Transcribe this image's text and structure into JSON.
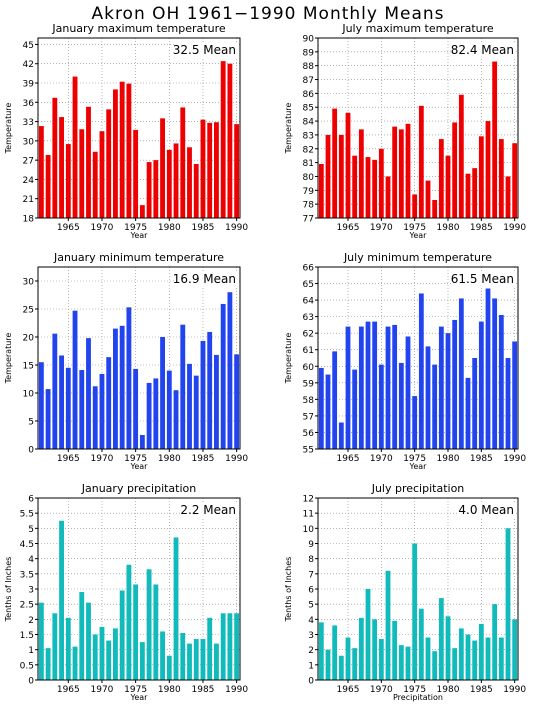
{
  "title": "Akron OH   1961−1990 Monthly Means",
  "chart_data": [
    {
      "type": "bar",
      "title": "January maximum temperature",
      "annotation": "32.5 Mean",
      "ylabel": "Temperature",
      "xlabel": "Year",
      "color": "#ee0000",
      "ylim": [
        18,
        46
      ],
      "yticks": [
        18,
        21,
        24,
        27,
        30,
        33,
        36,
        39,
        42,
        45
      ],
      "xticks": [
        1965,
        1970,
        1975,
        1980,
        1985,
        1990
      ],
      "x": [
        1961,
        1962,
        1963,
        1964,
        1965,
        1966,
        1967,
        1968,
        1969,
        1970,
        1971,
        1972,
        1973,
        1974,
        1975,
        1976,
        1977,
        1978,
        1979,
        1980,
        1981,
        1982,
        1983,
        1984,
        1985,
        1986,
        1987,
        1988,
        1989,
        1990
      ],
      "values": [
        32.3,
        27.8,
        36.7,
        33.7,
        29.5,
        40.0,
        31.8,
        35.3,
        28.3,
        31.5,
        34.9,
        38.0,
        39.2,
        38.9,
        31.7,
        20.0,
        26.7,
        27.0,
        33.5,
        28.6,
        29.6,
        35.2,
        29.0,
        26.4,
        33.3,
        32.8,
        32.9,
        42.4,
        42.0,
        32.6
      ]
    },
    {
      "type": "bar",
      "title": "July maximum temperature",
      "annotation": "82.4 Mean",
      "ylabel": "Temperature",
      "xlabel": "Year",
      "color": "#ee0000",
      "ylim": [
        77,
        90
      ],
      "yticks": [
        77,
        78,
        79,
        80,
        81,
        82,
        83,
        84,
        85,
        86,
        87,
        88,
        89,
        90
      ],
      "xticks": [
        1965,
        1970,
        1975,
        1980,
        1985,
        1990
      ],
      "x": [
        1961,
        1962,
        1963,
        1964,
        1965,
        1966,
        1967,
        1968,
        1969,
        1970,
        1971,
        1972,
        1973,
        1974,
        1975,
        1976,
        1977,
        1978,
        1979,
        1980,
        1981,
        1982,
        1983,
        1984,
        1985,
        1986,
        1987,
        1988,
        1989,
        1990
      ],
      "values": [
        80.9,
        83.0,
        84.9,
        83.0,
        84.6,
        81.5,
        83.4,
        81.4,
        81.2,
        82.0,
        80.0,
        83.6,
        83.4,
        83.8,
        78.7,
        85.1,
        79.7,
        78.3,
        82.7,
        81.5,
        83.9,
        85.9,
        80.2,
        80.6,
        82.9,
        84.0,
        88.3,
        82.7,
        80.0,
        82.4
      ]
    },
    {
      "type": "bar",
      "title": "January minimum temperature",
      "annotation": "16.9 Mean",
      "ylabel": "Temperature",
      "xlabel": "Year",
      "color": "#2244ee",
      "ylim": [
        0,
        32.5
      ],
      "yticks": [
        0,
        5,
        10,
        15,
        20,
        25,
        30
      ],
      "xticks": [
        1965,
        1970,
        1975,
        1980,
        1985,
        1990
      ],
      "x": [
        1961,
        1962,
        1963,
        1964,
        1965,
        1966,
        1967,
        1968,
        1969,
        1970,
        1971,
        1972,
        1973,
        1974,
        1975,
        1976,
        1977,
        1978,
        1979,
        1980,
        1981,
        1982,
        1983,
        1984,
        1985,
        1986,
        1987,
        1988,
        1989,
        1990
      ],
      "values": [
        15.5,
        10.7,
        20.6,
        16.7,
        14.5,
        24.7,
        14.1,
        19.8,
        11.2,
        13.4,
        16.4,
        21.5,
        22.0,
        25.3,
        14.3,
        2.5,
        11.8,
        12.6,
        20.0,
        14.0,
        10.5,
        22.2,
        15.2,
        13.1,
        19.3,
        20.9,
        16.8,
        25.9,
        28.0,
        16.9
      ]
    },
    {
      "type": "bar",
      "title": "July minimum temperature",
      "annotation": "61.5 Mean",
      "ylabel": "Temperature",
      "xlabel": "Year",
      "color": "#2244ee",
      "ylim": [
        55,
        66
      ],
      "yticks": [
        55,
        56,
        57,
        58,
        59,
        60,
        61,
        62,
        63,
        64,
        65,
        66
      ],
      "xticks": [
        1965,
        1970,
        1975,
        1980,
        1985,
        1990
      ],
      "x": [
        1961,
        1962,
        1963,
        1964,
        1965,
        1966,
        1967,
        1968,
        1969,
        1970,
        1971,
        1972,
        1973,
        1974,
        1975,
        1976,
        1977,
        1978,
        1979,
        1980,
        1981,
        1982,
        1983,
        1984,
        1985,
        1986,
        1987,
        1988,
        1989,
        1990
      ],
      "values": [
        59.9,
        59.5,
        60.9,
        56.6,
        62.4,
        59.8,
        62.4,
        62.7,
        62.7,
        60.1,
        62.4,
        62.5,
        60.2,
        61.8,
        58.2,
        64.4,
        61.2,
        60.1,
        62.4,
        62.0,
        62.8,
        64.1,
        59.3,
        60.5,
        62.7,
        64.7,
        64.1,
        63.1,
        60.5,
        61.5
      ]
    },
    {
      "type": "bar",
      "title": "January precipitation",
      "annotation": "2.2 Mean",
      "ylabel": "Tenths of Inches",
      "xlabel": "Year",
      "color": "#11bbbb",
      "ylim": [
        0,
        6
      ],
      "yticks": [
        0,
        0.5,
        1,
        1.5,
        2,
        2.5,
        3,
        3.5,
        4,
        4.5,
        5,
        5.5,
        6
      ],
      "ytick_labels": [
        "0",
        "0.5",
        "1",
        "1.5",
        "2",
        "2.5",
        "3",
        "3.5",
        "4",
        "4.5",
        "5",
        "5.5",
        "6"
      ],
      "xticks": [
        1965,
        1970,
        1975,
        1980,
        1985,
        1990
      ],
      "x": [
        1961,
        1962,
        1963,
        1964,
        1965,
        1966,
        1967,
        1968,
        1969,
        1970,
        1971,
        1972,
        1973,
        1974,
        1975,
        1976,
        1977,
        1978,
        1979,
        1980,
        1981,
        1982,
        1983,
        1984,
        1985,
        1986,
        1987,
        1988,
        1989,
        1990
      ],
      "values": [
        2.55,
        1.05,
        2.2,
        5.25,
        2.05,
        1.1,
        2.9,
        2.55,
        1.5,
        1.75,
        1.3,
        1.7,
        2.95,
        3.8,
        3.15,
        1.25,
        3.65,
        3.15,
        1.6,
        0.8,
        4.7,
        1.55,
        1.2,
        1.35,
        1.35,
        2.05,
        1.2,
        2.2,
        2.2,
        2.2
      ]
    },
    {
      "type": "bar",
      "title": "July precipitation",
      "annotation": "4.0 Mean",
      "ylabel": "Tenths of Inches",
      "xlabel": "Precipitation",
      "color": "#11bbbb",
      "ylim": [
        0,
        12
      ],
      "yticks": [
        0,
        1,
        2,
        3,
        4,
        5,
        6,
        7,
        8,
        9,
        10,
        11,
        12
      ],
      "xticks": [
        1965,
        1970,
        1975,
        1980,
        1985,
        1990
      ],
      "x": [
        1961,
        1962,
        1963,
        1964,
        1965,
        1966,
        1967,
        1968,
        1969,
        1970,
        1971,
        1972,
        1973,
        1974,
        1975,
        1976,
        1977,
        1978,
        1979,
        1980,
        1981,
        1982,
        1983,
        1984,
        1985,
        1986,
        1987,
        1988,
        1989,
        1990
      ],
      "values": [
        3.8,
        2.0,
        3.6,
        1.6,
        2.8,
        2.1,
        4.1,
        6.0,
        4.0,
        2.7,
        7.2,
        3.9,
        2.3,
        2.2,
        9.0,
        4.7,
        2.8,
        1.9,
        5.4,
        4.2,
        2.1,
        3.4,
        3.0,
        2.6,
        3.7,
        2.8,
        5.0,
        2.8,
        10.0,
        4.0
      ]
    }
  ]
}
